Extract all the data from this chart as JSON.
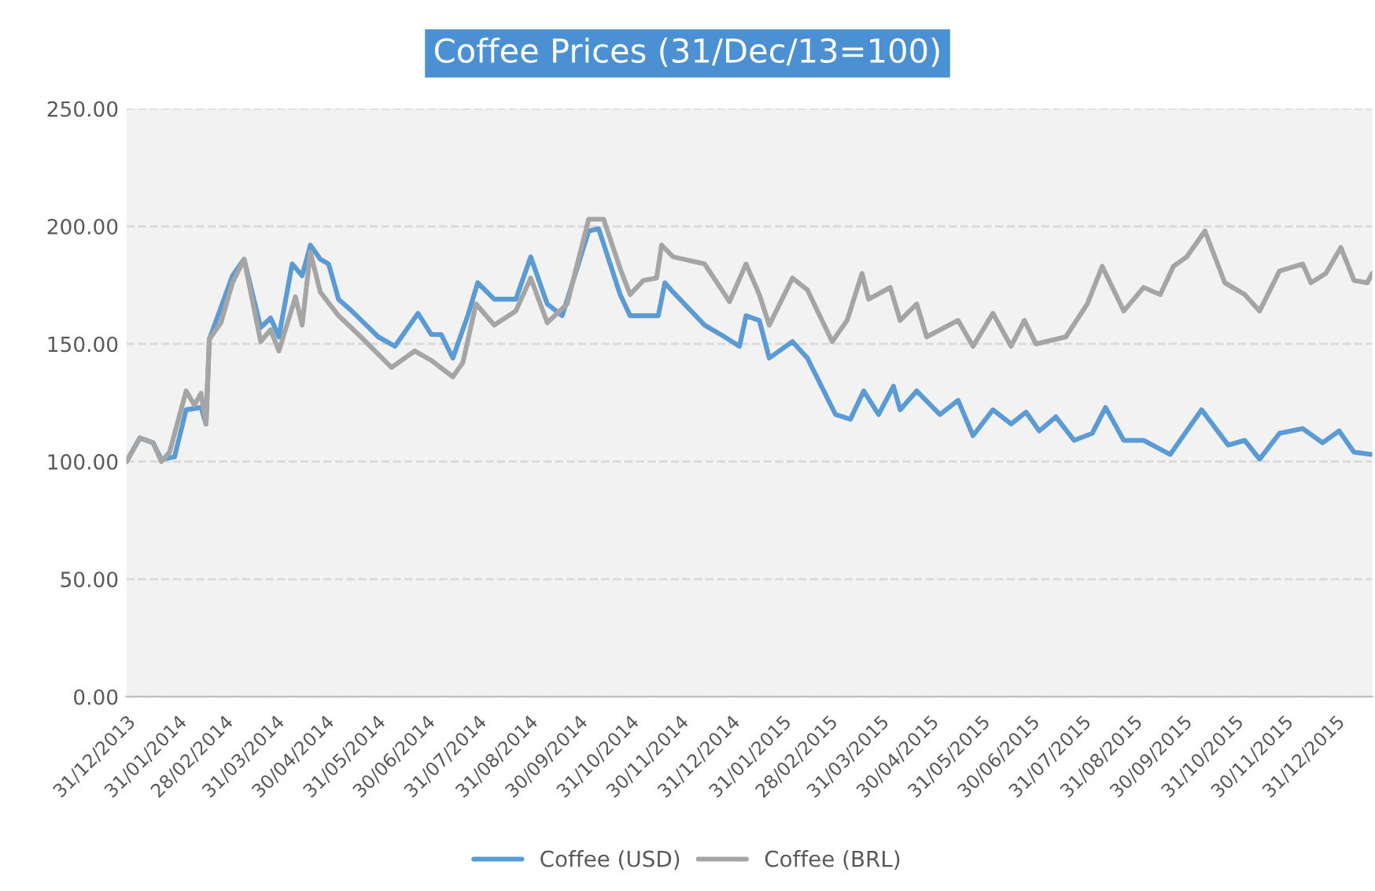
{
  "chart_data": {
    "type": "line",
    "title": "Coffee Prices (31/Dec/13=100)",
    "xlim": [
      "2013-12-31",
      "2016-01-22"
    ],
    "xticks": [
      {
        "value": "2013-12-31",
        "label": "31/12/2013"
      },
      {
        "value": "2014-01-31",
        "label": "31/01/2014"
      },
      {
        "value": "2014-02-28",
        "label": "28/02/2014"
      },
      {
        "value": "2014-03-31",
        "label": "31/03/2014"
      },
      {
        "value": "2014-04-30",
        "label": "30/04/2014"
      },
      {
        "value": "2014-05-31",
        "label": "31/05/2014"
      },
      {
        "value": "2014-06-30",
        "label": "30/06/2014"
      },
      {
        "value": "2014-07-31",
        "label": "31/07/2014"
      },
      {
        "value": "2014-08-31",
        "label": "31/08/2014"
      },
      {
        "value": "2014-09-30",
        "label": "30/09/2014"
      },
      {
        "value": "2014-10-31",
        "label": "31/10/2014"
      },
      {
        "value": "2014-11-30",
        "label": "30/11/2014"
      },
      {
        "value": "2014-12-31",
        "label": "31/12/2014"
      },
      {
        "value": "2015-01-31",
        "label": "31/01/2015"
      },
      {
        "value": "2015-02-28",
        "label": "28/02/2015"
      },
      {
        "value": "2015-03-31",
        "label": "31/03/2015"
      },
      {
        "value": "2015-04-30",
        "label": "30/04/2015"
      },
      {
        "value": "2015-05-31",
        "label": "31/05/2015"
      },
      {
        "value": "2015-06-30",
        "label": "30/06/2015"
      },
      {
        "value": "2015-07-31",
        "label": "31/07/2015"
      },
      {
        "value": "2015-08-31",
        "label": "31/08/2015"
      },
      {
        "value": "2015-09-30",
        "label": "30/09/2015"
      },
      {
        "value": "2015-10-31",
        "label": "31/10/2015"
      },
      {
        "value": "2015-11-30",
        "label": "30/11/2015"
      },
      {
        "value": "2015-12-31",
        "label": "31/12/2015"
      }
    ],
    "ylim": [
      0,
      250
    ],
    "yticks": [
      {
        "value": 0,
        "label": "0.00"
      },
      {
        "value": 50,
        "label": "50.00"
      },
      {
        "value": 100,
        "label": "100.00"
      },
      {
        "value": 150,
        "label": "150.00"
      },
      {
        "value": 200,
        "label": "200.00"
      },
      {
        "value": 250,
        "label": "250.00"
      }
    ],
    "grid": "y",
    "legend": "bottom",
    "line_style": "solid",
    "series": [
      {
        "name": "Coffee (USD)",
        "color": "#5b9bd5",
        "x": [
          "2013-12-31",
          "2014-01-08",
          "2014-01-16",
          "2014-01-21",
          "2014-01-29",
          "2014-02-05",
          "2014-02-14",
          "2014-02-17",
          "2014-02-19",
          "2014-03-05",
          "2014-03-12",
          "2014-03-22",
          "2014-03-28",
          "2014-04-02",
          "2014-04-10",
          "2014-04-16",
          "2014-04-21",
          "2014-04-27",
          "2014-05-02",
          "2014-05-08",
          "2014-05-16",
          "2014-06-01",
          "2014-06-11",
          "2014-06-25",
          "2014-07-03",
          "2014-07-09",
          "2014-07-16",
          "2014-07-25",
          "2014-07-31",
          "2014-08-10",
          "2014-08-23",
          "2014-09-01",
          "2014-09-11",
          "2014-09-20",
          "2014-10-06",
          "2014-10-12",
          "2014-10-25",
          "2014-10-31",
          "2014-11-17",
          "2014-11-21",
          "2014-11-26",
          "2014-12-15",
          "2014-12-27",
          "2015-01-05",
          "2015-01-09",
          "2015-01-17",
          "2015-01-23",
          "2015-02-06",
          "2015-02-15",
          "2015-03-04",
          "2015-03-13",
          "2015-03-21",
          "2015-03-30",
          "2015-04-08",
          "2015-04-12",
          "2015-04-22",
          "2015-05-06",
          "2015-05-17",
          "2015-05-26",
          "2015-06-07",
          "2015-06-18",
          "2015-06-27",
          "2015-07-05",
          "2015-07-15",
          "2015-07-26",
          "2015-08-06",
          "2015-08-14",
          "2015-08-25",
          "2015-09-06",
          "2015-09-22",
          "2015-10-05",
          "2015-10-11",
          "2015-10-27",
          "2015-11-06",
          "2015-11-15",
          "2015-11-27",
          "2015-12-11",
          "2015-12-23",
          "2016-01-02",
          "2016-01-11",
          "2016-01-22"
        ],
        "values": [
          100,
          110,
          108,
          101,
          102,
          122,
          123,
          116,
          152,
          179,
          186,
          157,
          161,
          153,
          184,
          179,
          192,
          186,
          184,
          169,
          164,
          153,
          149,
          163,
          154,
          154,
          144,
          162,
          176,
          169,
          169,
          187,
          167,
          162,
          198,
          199,
          171,
          162,
          162,
          176,
          172,
          158,
          153,
          149,
          162,
          160,
          144,
          151,
          144,
          120,
          118,
          130,
          120,
          132,
          122,
          130,
          120,
          126,
          111,
          122,
          116,
          121,
          113,
          119,
          109,
          112,
          123,
          109,
          109,
          103,
          116,
          122,
          107,
          109,
          101,
          112,
          114,
          108,
          113,
          104,
          103
        ]
      },
      {
        "name": "Coffee (BRL)",
        "color": "#a5a5a5",
        "x": [
          "2013-12-31",
          "2014-01-08",
          "2014-01-16",
          "2014-01-21",
          "2014-01-26",
          "2014-02-05",
          "2014-02-10",
          "2014-02-14",
          "2014-02-17",
          "2014-02-19",
          "2014-02-26",
          "2014-03-05",
          "2014-03-12",
          "2014-03-22",
          "2014-03-28",
          "2014-04-02",
          "2014-04-12",
          "2014-04-16",
          "2014-04-21",
          "2014-04-27",
          "2014-05-08",
          "2014-05-20",
          "2014-06-09",
          "2014-06-23",
          "2014-07-03",
          "2014-07-16",
          "2014-07-22",
          "2014-07-30",
          "2014-08-10",
          "2014-08-23",
          "2014-09-01",
          "2014-09-11",
          "2014-09-23",
          "2014-10-06",
          "2014-10-15",
          "2014-10-25",
          "2014-10-31",
          "2014-11-08",
          "2014-11-16",
          "2014-11-19",
          "2014-11-26",
          "2014-12-15",
          "2014-12-30",
          "2015-01-09",
          "2015-01-17",
          "2015-01-23",
          "2015-02-06",
          "2015-02-15",
          "2015-03-02",
          "2015-03-11",
          "2015-03-20",
          "2015-03-24",
          "2015-04-06",
          "2015-04-12",
          "2015-04-22",
          "2015-04-28",
          "2015-05-17",
          "2015-05-26",
          "2015-06-07",
          "2015-06-18",
          "2015-06-26",
          "2015-07-03",
          "2015-07-21",
          "2015-08-03",
          "2015-08-12",
          "2015-08-25",
          "2015-09-06",
          "2015-09-16",
          "2015-09-24",
          "2015-10-02",
          "2015-10-13",
          "2015-10-25",
          "2015-11-06",
          "2015-11-15",
          "2015-11-27",
          "2015-12-11",
          "2015-12-16",
          "2015-12-25",
          "2016-01-03",
          "2016-01-11",
          "2016-01-19",
          "2016-01-22"
        ],
        "values": [
          100,
          110,
          108,
          100,
          104,
          130,
          124,
          129,
          116,
          152,
          159,
          176,
          186,
          151,
          156,
          147,
          170,
          158,
          189,
          172,
          162,
          154,
          140,
          147,
          143,
          136,
          142,
          167,
          158,
          164,
          178,
          159,
          167,
          203,
          203,
          182,
          171,
          177,
          178,
          192,
          187,
          184,
          168,
          184,
          171,
          158,
          178,
          173,
          151,
          160,
          180,
          169,
          174,
          160,
          167,
          153,
          160,
          149,
          163,
          149,
          160,
          150,
          153,
          167,
          183,
          164,
          174,
          171,
          183,
          187,
          198,
          176,
          171,
          164,
          181,
          184,
          176,
          180,
          191,
          177,
          176,
          180
        ]
      }
    ]
  }
}
